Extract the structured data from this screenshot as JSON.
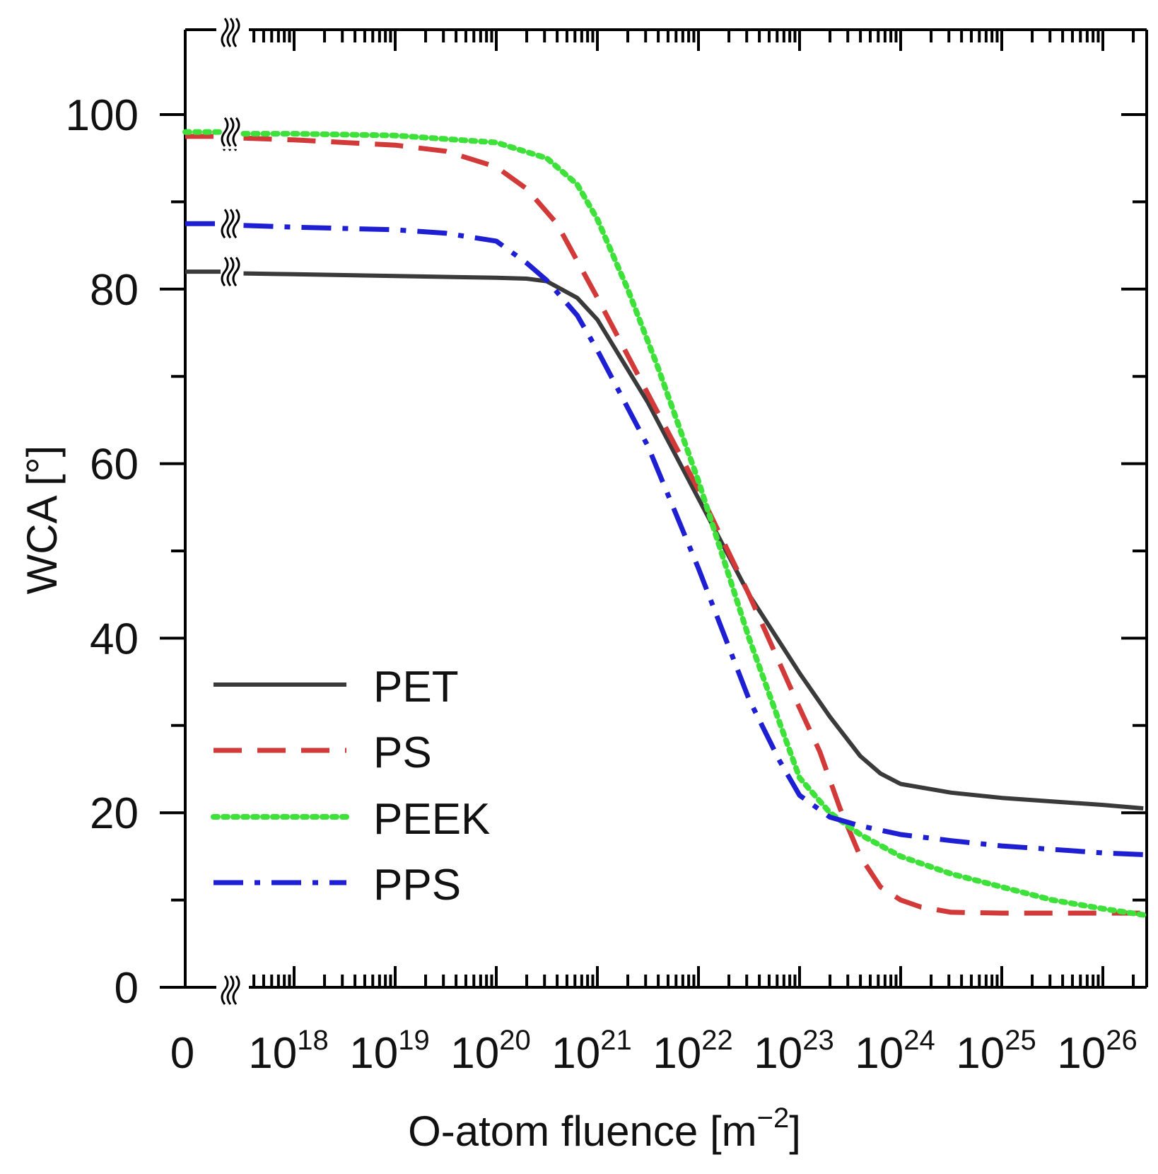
{
  "chart_data": {
    "type": "line",
    "xlabel": "O-atom fluence [m",
    "xlabel_exp": "−2",
    "xlabel_suffix": "]",
    "ylabel": "WCA [°]",
    "x_scale": "log",
    "xlim_log10": [
      17.3,
      26.4
    ],
    "ylim": [
      0,
      110
    ],
    "x_zero_label": "0",
    "x_tick_base": "10",
    "x_tick_exponents": [
      "18",
      "19",
      "20",
      "21",
      "22",
      "23",
      "24",
      "25",
      "26"
    ],
    "y_tick_labels": [
      "0",
      "20",
      "40",
      "60",
      "80",
      "100"
    ],
    "y_ticks": [
      0,
      20,
      40,
      60,
      80,
      100
    ],
    "y_minor_ticks": [
      10,
      30,
      50,
      70,
      90
    ],
    "axis_break": "between 0 and 10^18",
    "series": [
      {
        "name": "PET",
        "color": "#3a3a3a",
        "style": "solid",
        "value_at_zero": 82,
        "log10_x": [
          17.5,
          18,
          19,
          20,
          20.3,
          20.5,
          20.8,
          21,
          21.5,
          22,
          22.5,
          23,
          23.3,
          23.6,
          23.8,
          24,
          24.5,
          25,
          25.5,
          26,
          26.4
        ],
        "y": [
          81.8,
          81.7,
          81.5,
          81.3,
          81.2,
          80.9,
          79,
          76.5,
          67,
          56,
          45,
          36,
          31,
          26.5,
          24.5,
          23.3,
          22.3,
          21.7,
          21.3,
          20.9,
          20.5
        ]
      },
      {
        "name": "PS",
        "color": "#d23a3a",
        "style": "dashed",
        "value_at_zero": 97.5,
        "log10_x": [
          17.5,
          18,
          19,
          19.5,
          20,
          20.3,
          20.6,
          21,
          21.5,
          22,
          22.5,
          23,
          23.2,
          23.4,
          23.6,
          23.8,
          24,
          24.2,
          24.5,
          25,
          25.5,
          26,
          26.4
        ],
        "y": [
          97.3,
          97.1,
          96.5,
          95.8,
          94,
          91.5,
          87.5,
          79,
          68,
          57,
          45,
          32,
          27,
          20.5,
          15,
          11.5,
          10,
          9.2,
          8.6,
          8.5,
          8.5,
          8.5,
          8.5
        ]
      },
      {
        "name": "PEEK",
        "color": "#3ee03a",
        "style": "dotted",
        "value_at_zero": 98,
        "log10_x": [
          17.5,
          18,
          19,
          20,
          20.5,
          20.8,
          21,
          21.3,
          21.6,
          22,
          22.5,
          23,
          23.3,
          23.6,
          24,
          24.5,
          25,
          25.5,
          26,
          26.4
        ],
        "y": [
          97.8,
          97.8,
          97.6,
          96.8,
          95,
          92,
          88,
          80,
          71,
          58,
          40,
          24,
          20,
          17.5,
          15,
          13,
          11.5,
          10,
          9,
          8.3
        ]
      },
      {
        "name": "PPS",
        "color": "#1e1ed2",
        "style": "dashdot",
        "value_at_zero": 87.5,
        "log10_x": [
          17.5,
          18,
          19,
          19.5,
          20,
          20.3,
          20.5,
          20.8,
          21,
          21.5,
          22,
          22.5,
          22.8,
          23,
          23.3,
          23.6,
          24,
          24.5,
          25,
          25.5,
          26,
          26.4
        ],
        "y": [
          87.3,
          87.1,
          86.8,
          86.4,
          85.5,
          83,
          81,
          77,
          73,
          62,
          48,
          33,
          26,
          22,
          19.5,
          18.5,
          17.5,
          16.8,
          16.2,
          15.8,
          15.4,
          15.2
        ]
      }
    ],
    "legend": {
      "placement": "lower-left",
      "entries": [
        "PET",
        "PS",
        "PEEK",
        "PPS"
      ]
    },
    "grid": false
  }
}
